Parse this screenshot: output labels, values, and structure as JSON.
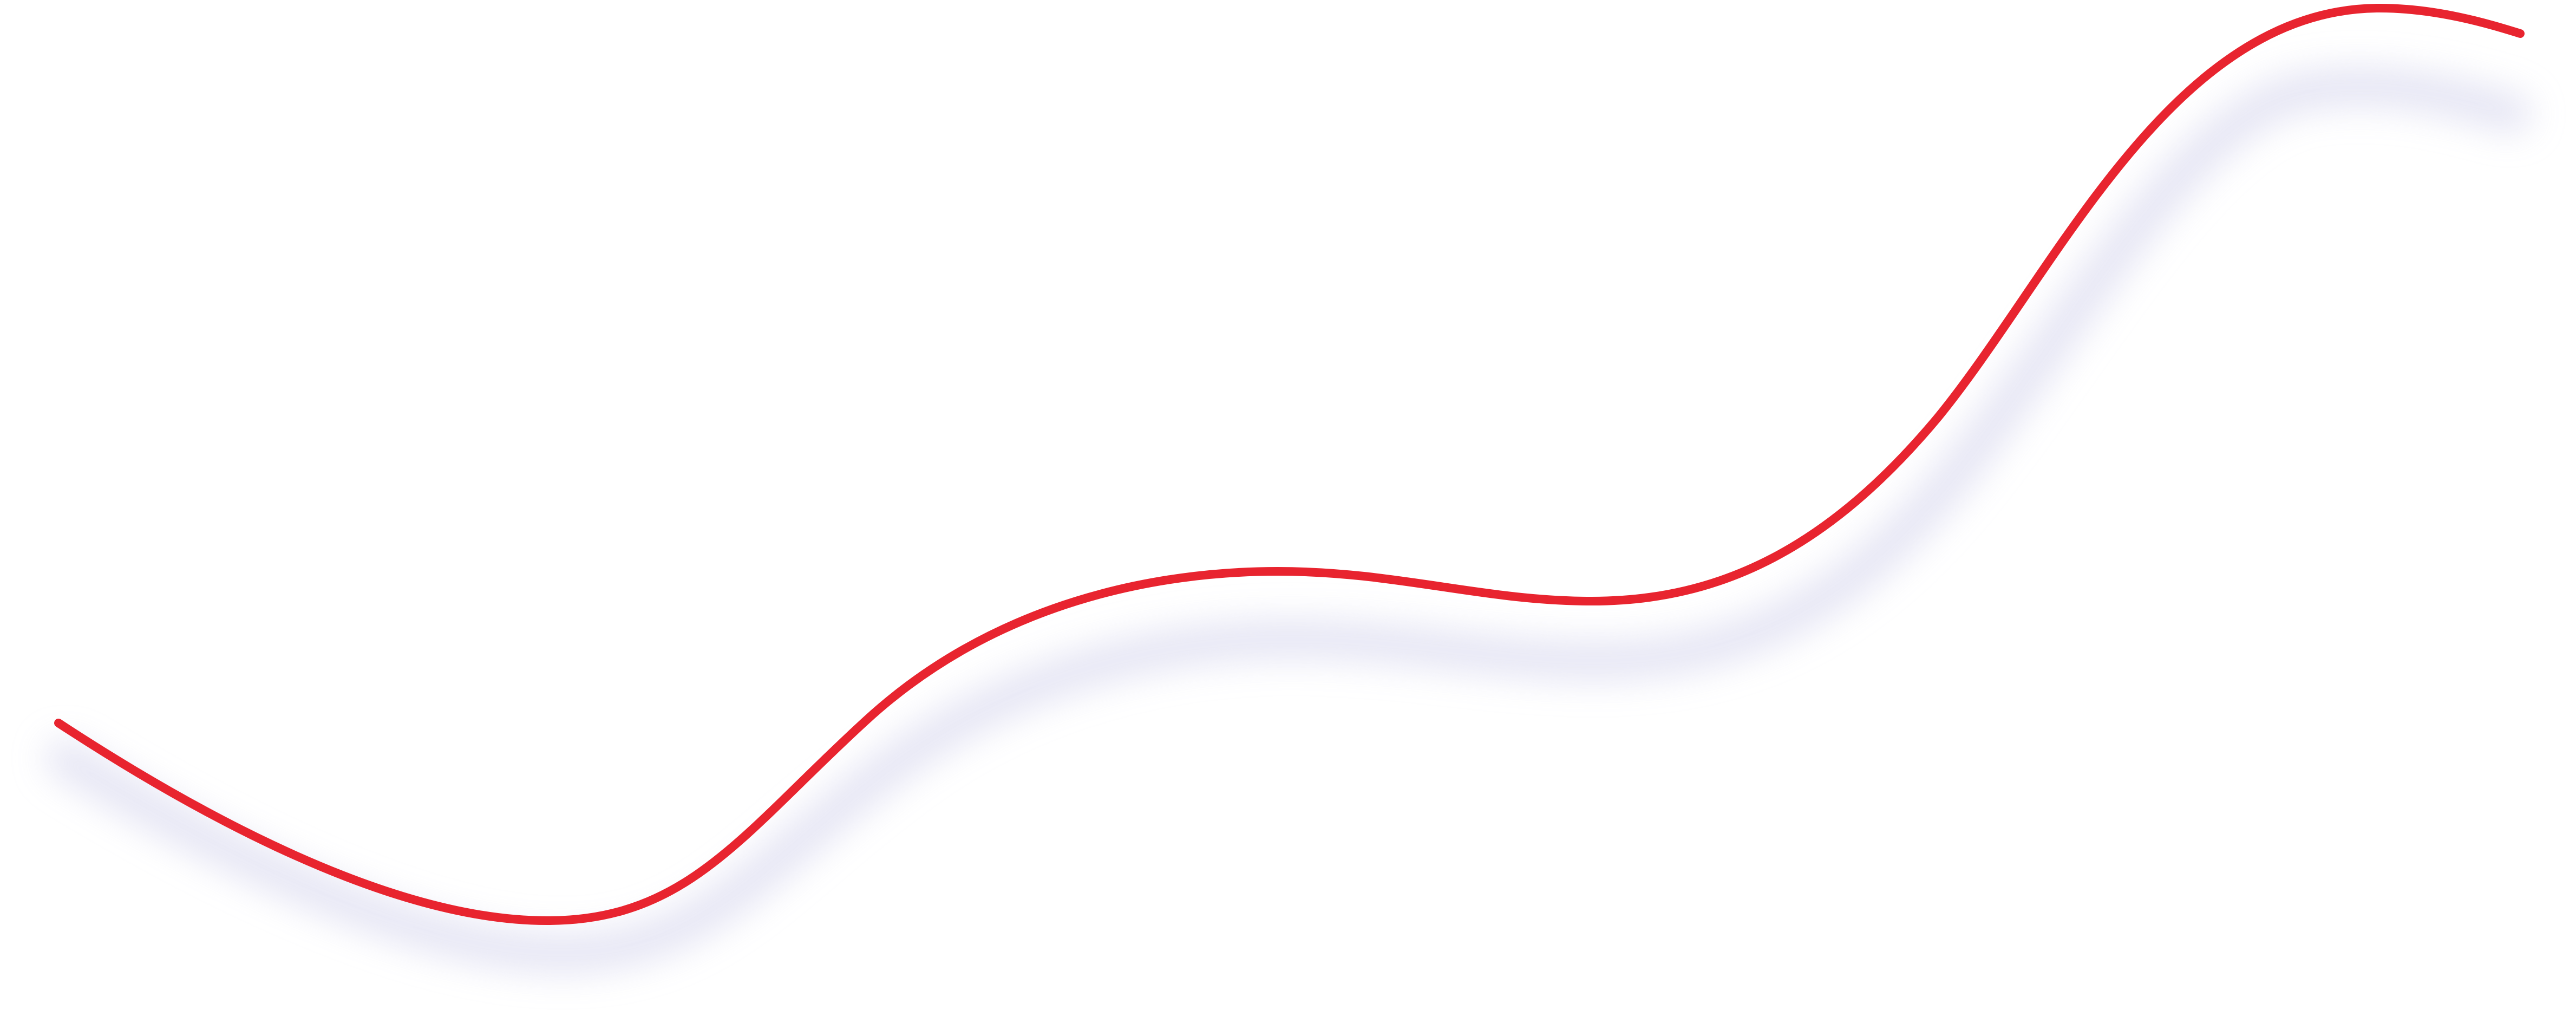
{
  "colors": {
    "background": "#ffffff",
    "curve": "#e8242f",
    "shadow": "#dcdcf0"
  },
  "elements": {
    "curve": "wavy-red-line",
    "shadow": "curve-drop-shadow"
  }
}
